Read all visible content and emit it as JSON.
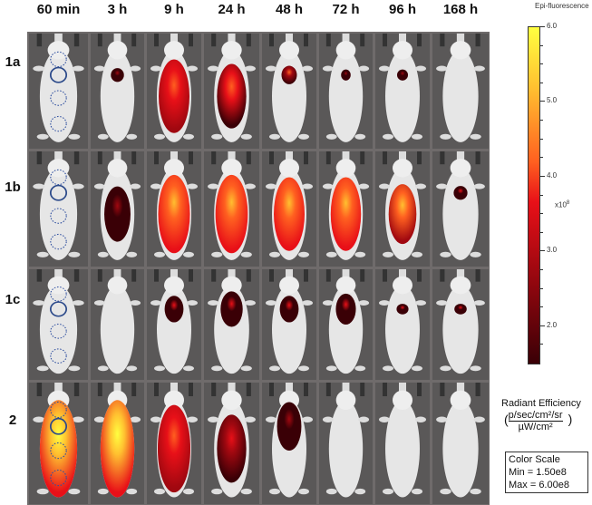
{
  "columns": [
    "60 min",
    "3 h",
    "9 h",
    "24 h",
    "48 h",
    "72 h",
    "96 h",
    "168 h"
  ],
  "rows": [
    {
      "label": "1a",
      "signal_peak_x1e8": [
        0,
        2.5,
        4.5,
        4.3,
        4.0,
        2.5,
        2.2,
        0
      ],
      "signal_extent": [
        0,
        0.15,
        0.8,
        0.7,
        0.2,
        0.08,
        0.1,
        0
      ],
      "roi_circles": true
    },
    {
      "label": "1b",
      "signal_peak_x1e8": [
        0,
        2.5,
        5.5,
        5.5,
        5.5,
        5.5,
        5.0,
        3.0
      ],
      "signal_extent": [
        0,
        0.6,
        0.85,
        0.85,
        0.8,
        0.8,
        0.65,
        0.15
      ],
      "roi_circles": true
    },
    {
      "label": "1c",
      "signal_peak_x1e8": [
        0,
        0,
        3.0,
        3.0,
        3.0,
        3.0,
        3.0,
        3.0
      ],
      "signal_extent": [
        0,
        0,
        0.3,
        0.4,
        0.3,
        0.35,
        0.12,
        0.12
      ],
      "roi_circles": true
    },
    {
      "label": "2",
      "signal_peak_x1e8": [
        6.0,
        6.0,
        4.5,
        3.5,
        2.5,
        0,
        0,
        0
      ],
      "signal_extent": [
        1.0,
        1.0,
        0.9,
        0.7,
        0.5,
        0,
        0,
        0
      ],
      "roi_circles": true
    }
  ],
  "colorbar": {
    "title": "Epi-fluorescence",
    "ticks": [
      "6.0",
      "5.0",
      "4.0",
      "3.0",
      "2.0"
    ],
    "tick_values": [
      6.0,
      5.0,
      4.0,
      3.0,
      2.0
    ],
    "multiplier": "x10",
    "exponent": "8",
    "range": [
      1.5,
      6.0
    ],
    "unit_title": "Radiant Efficiency",
    "unit_numerator": "p/sec/cm²/sr",
    "unit_denominator": "µW/cm²",
    "colors": [
      "#3a0006",
      "#a00810",
      "#e81018",
      "#ff6020",
      "#ffc030",
      "#ffff40"
    ]
  },
  "color_scale_box": {
    "title": "Color Scale",
    "min": "Min = 1.50e8",
    "max": "Max = 6.00e8"
  }
}
